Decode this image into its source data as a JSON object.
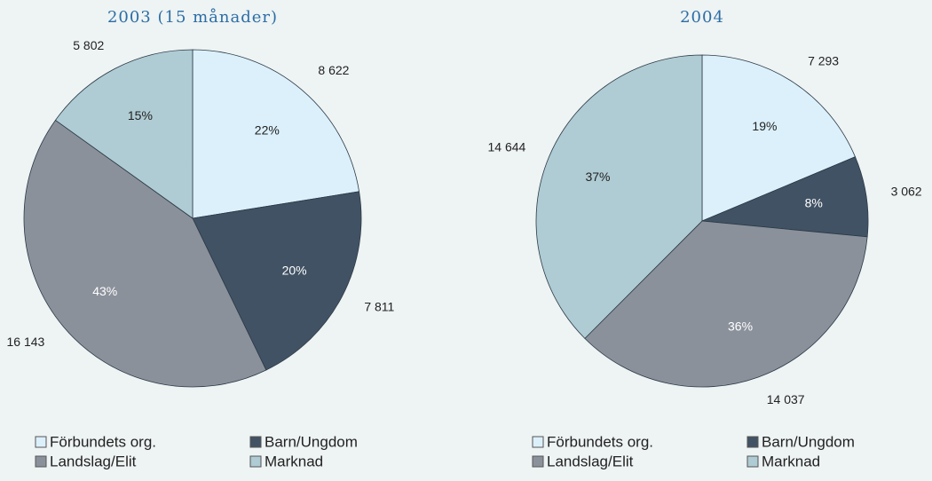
{
  "chart_data": [
    {
      "type": "pie",
      "title": "2003 (15 månader)",
      "categories": [
        "Förbundets org.",
        "Barn/Ungdom",
        "Landslag/Elit",
        "Marknad"
      ],
      "values": [
        8622,
        7811,
        16143,
        5802
      ],
      "value_labels": [
        "8 622",
        "7 811",
        "16 143",
        "5 802"
      ],
      "percent_labels": [
        "22%",
        "20%",
        "43%",
        "15%"
      ],
      "colors": [
        "#dcf0fb",
        "#415264",
        "#8b919b",
        "#afcbd3"
      ]
    },
    {
      "type": "pie",
      "title": "2004",
      "categories": [
        "Förbundets org.",
        "Barn/Ungdom",
        "Landslag/Elit",
        "Marknad"
      ],
      "values": [
        7293,
        3062,
        14037,
        14644
      ],
      "value_labels": [
        "7 293",
        "3 062",
        "14 037",
        "14 644"
      ],
      "percent_labels": [
        "19%",
        "8%",
        "36%",
        "37%"
      ],
      "colors": [
        "#dcf0fb",
        "#415264",
        "#8b919b",
        "#afcbd3"
      ]
    }
  ]
}
